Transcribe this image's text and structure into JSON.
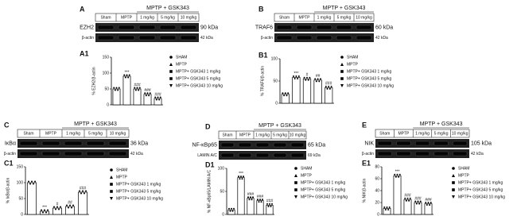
{
  "chart_data": [
    {
      "type": "bar",
      "panel": "A1",
      "ylabel": "% EZH2/β-actin",
      "categories": [
        "SHAM",
        "MPTP",
        "MPTP+ GSK343 1 mg/kg",
        "MPTP+ GSK343 5 mg/kg",
        "MPTP+ GSK343 10 mg/kg"
      ],
      "values": [
        50,
        90,
        50,
        33,
        20
      ],
      "annotations": [
        null,
        "***",
        "###",
        "###",
        "###"
      ],
      "ylim": [
        0,
        150
      ],
      "yticks": [
        0,
        50,
        100,
        150
      ],
      "color": "#ffffff"
    },
    {
      "type": "bar",
      "panel": "B1",
      "ylabel": "% TRAF6/β-actin",
      "categories": [
        "SHAM",
        "MPTP",
        "MPTP+ GSK343 1 mg/kg",
        "MPTP+ GSK343 5 mg/kg",
        "MPTP+ GSK343 10 mg/kg"
      ],
      "values": [
        20,
        58,
        55,
        52,
        35
      ],
      "annotations": [
        null,
        "***",
        "#",
        "##",
        "###"
      ],
      "ylim": [
        0,
        100
      ],
      "yticks": [
        0,
        50,
        100
      ],
      "color": "#ffffff"
    },
    {
      "type": "bar",
      "panel": "C1",
      "ylabel": "% IκBα/β-actin",
      "categories": [
        "SHAM",
        "MPTP",
        "MPTP+ GSK343 1 mg/kg",
        "MPTP+ GSK343 5 mg/kg",
        "MPTP+ GSK343 10 mg/kg"
      ],
      "values": [
        100,
        10,
        20,
        25,
        70
      ],
      "annotations": [
        null,
        "***",
        "#",
        "##",
        "###"
      ],
      "ylim": [
        0,
        150
      ],
      "yticks": [
        0,
        50,
        100,
        150
      ],
      "color": "#ffffff"
    },
    {
      "type": "bar",
      "panel": "D1",
      "ylabel": "% NF-κBp65/LAMIN A/C",
      "categories": [
        "SHAM",
        "MPTP",
        "MPTP+ GSK343 1 mg/kg",
        "MPTP+ GSK343 5 mg/kg",
        "MPTP+ GSK343 10 mg/kg"
      ],
      "values": [
        10,
        80,
        35,
        30,
        20
      ],
      "annotations": [
        null,
        "***",
        "###",
        "###",
        "###"
      ],
      "ylim": [
        0,
        100
      ],
      "yticks": [
        0,
        50,
        100
      ],
      "color": "#ffffff"
    },
    {
      "type": "bar",
      "panel": "E1",
      "ylabel": "% NIK/β-actin",
      "categories": [
        "SHAM",
        "MPTP",
        "MPTP+ GSK343 1 mg/kg",
        "MPTP+ GSK343 5 mg/kg",
        "MPTP+ GSK343 10 mg/kg"
      ],
      "values": [
        10,
        65,
        25,
        20,
        18
      ],
      "annotations": [
        null,
        "***",
        "###",
        "###",
        "###"
      ],
      "ylim": [
        0,
        80
      ],
      "yticks": [
        0,
        20,
        40,
        60,
        80
      ],
      "color": "#ffffff"
    }
  ],
  "blots": [
    {
      "panel": "A",
      "header": "MPTP + GSK343",
      "lanes": [
        "Sham",
        "MPTP",
        "1 mg/kg",
        "5 mg/kg",
        "10 mg/kg"
      ],
      "rows": [
        {
          "label": "EZH2",
          "size": "90 kDa"
        },
        {
          "label": "β-actin",
          "size": "42 kDa"
        }
      ]
    },
    {
      "panel": "B",
      "header": "MPTP + GSK343",
      "lanes": [
        "Sham",
        "MPTP",
        "1 mg/kg",
        "5 mg/kg",
        "10 mg/kg"
      ],
      "rows": [
        {
          "label": "TRAF6",
          "size": "60 kDa"
        },
        {
          "label": "β-actin",
          "size": "42 kDa"
        }
      ]
    },
    {
      "panel": "C",
      "header": "MPTP + GSK343",
      "lanes": [
        "Sham",
        "MPTP",
        "1 mg/kg",
        "5 mg/kg",
        "10 mg/kg"
      ],
      "rows": [
        {
          "label": "IκBα",
          "size": "36 kDa"
        },
        {
          "label": "β-actin",
          "size": "42 kDa"
        }
      ]
    },
    {
      "panel": "D",
      "header": "MPTP + GSK343",
      "lanes": [
        "Sham",
        "MPTP",
        "1 mg/kg",
        "5 mg/kg",
        "10 mg/kg"
      ],
      "rows": [
        {
          "label": "NF-κBp65",
          "size": "65 kDa"
        },
        {
          "label": "LAMIN A/C",
          "size": "69 kDa"
        }
      ]
    },
    {
      "panel": "E",
      "header": "MPTP + GSK343",
      "lanes": [
        "Sham",
        "MPTP",
        "1 mg/kg",
        "5 mg/kg",
        "10 mg/kg"
      ],
      "rows": [
        {
          "label": "NIK",
          "size": "105 kDa"
        },
        {
          "label": "β-actin",
          "size": "42 kDa"
        }
      ]
    }
  ]
}
